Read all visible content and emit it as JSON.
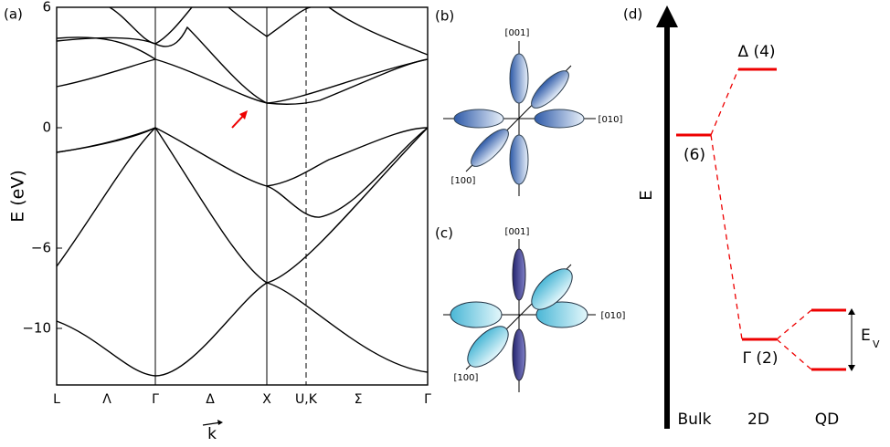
{
  "panel_a": {
    "label": "(a)",
    "y_axis_label": "E (eV)",
    "x_axis_label": "k",
    "yticks": [
      6,
      0,
      {
        "value": -6,
        "label": "−6"
      },
      {
        "value": -10,
        "label": "−10"
      }
    ],
    "kpoints": [
      "L",
      "Λ",
      "Γ",
      "Δ",
      "X",
      "U,K",
      "Σ",
      "Γ"
    ]
  },
  "panel_b": {
    "label": "(b)",
    "axes": [
      "[001]",
      "[010]",
      "[100]"
    ]
  },
  "panel_c": {
    "label": "(c)",
    "axes": [
      "[001]",
      "[010]",
      "[100]"
    ]
  },
  "panel_d": {
    "label": "(d)",
    "y_axis_label": "E",
    "levels": [
      "Δ (4)",
      "(6)",
      "Γ (2)"
    ],
    "gap_label": "E",
    "gap_subscript": "V",
    "columns": [
      "Bulk",
      "2D",
      "QD"
    ]
  }
}
